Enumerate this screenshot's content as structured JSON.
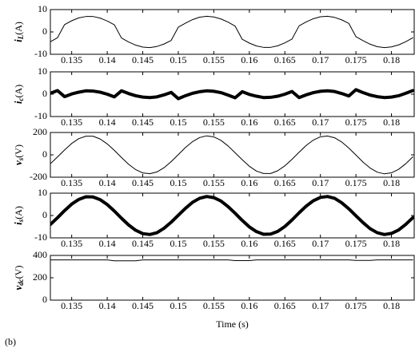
{
  "caption": "(b)",
  "chart_data": [
    {
      "type": "line",
      "y_label": {
        "symbol": "i",
        "sub": "L",
        "unit": "(A)"
      },
      "color": "#000000",
      "line_width": 1,
      "grid": false,
      "xlim": [
        0.132,
        0.1832
      ],
      "xticks": [
        0.135,
        0.14,
        0.145,
        0.15,
        0.155,
        0.16,
        0.165,
        0.17,
        0.175,
        0.18
      ],
      "ylim": [
        -10,
        10
      ],
      "yticks": [
        -10,
        0,
        10
      ],
      "x": [
        0.132,
        0.133,
        0.134,
        0.135,
        0.136,
        0.137,
        0.138,
        0.139,
        0.14,
        0.141,
        0.142,
        0.143,
        0.144,
        0.145,
        0.146,
        0.147,
        0.148,
        0.149,
        0.15,
        0.151,
        0.152,
        0.153,
        0.154,
        0.155,
        0.156,
        0.157,
        0.158,
        0.159,
        0.16,
        0.161,
        0.162,
        0.163,
        0.164,
        0.165,
        0.166,
        0.167,
        0.168,
        0.169,
        0.17,
        0.171,
        0.172,
        0.173,
        0.174,
        0.175,
        0.176,
        0.177,
        0.178,
        0.179,
        0.18,
        0.181,
        0.182,
        0.183
      ],
      "values": [
        -4.4,
        -2.6,
        3.3,
        5.0,
        6.3,
        6.9,
        6.9,
        6.2,
        4.9,
        3.2,
        -2.7,
        -4.5,
        -5.9,
        -6.8,
        -7.0,
        -6.5,
        -5.4,
        -3.8,
        2.1,
        3.9,
        5.5,
        6.6,
        7.0,
        6.7,
        5.8,
        4.4,
        2.6,
        -3.3,
        -5.0,
        -6.3,
        -6.9,
        -6.9,
        -6.2,
        -4.9,
        -3.2,
        2.7,
        4.5,
        5.9,
        6.8,
        7.0,
        6.5,
        5.4,
        3.8,
        -2.1,
        -3.9,
        -5.5,
        -6.6,
        -7.0,
        -6.7,
        -5.8,
        -4.4,
        -2.6
      ]
    },
    {
      "type": "line",
      "y_label": {
        "symbol": "i",
        "sub": "c",
        "unit": "(A)"
      },
      "color": "#000000",
      "line_width": 4,
      "grid": false,
      "xlim": [
        0.132,
        0.1832
      ],
      "xticks": [
        0.135,
        0.14,
        0.145,
        0.15,
        0.155,
        0.16,
        0.165,
        0.17,
        0.175,
        0.18
      ],
      "ylim": [
        -10,
        10
      ],
      "yticks": [
        -10,
        0,
        10
      ],
      "x": [
        0.132,
        0.133,
        0.134,
        0.135,
        0.136,
        0.137,
        0.138,
        0.139,
        0.14,
        0.141,
        0.142,
        0.143,
        0.144,
        0.145,
        0.146,
        0.147,
        0.148,
        0.149,
        0.15,
        0.151,
        0.152,
        0.153,
        0.154,
        0.155,
        0.156,
        0.157,
        0.158,
        0.159,
        0.16,
        0.161,
        0.162,
        0.163,
        0.164,
        0.165,
        0.166,
        0.167,
        0.168,
        0.169,
        0.17,
        0.171,
        0.172,
        0.173,
        0.174,
        0.175,
        0.176,
        0.177,
        0.178,
        0.179,
        0.18,
        0.181,
        0.182,
        0.183
      ],
      "values": [
        0.4,
        1.6,
        -1.1,
        0.1,
        0.9,
        1.5,
        1.4,
        0.9,
        0.0,
        -1.2,
        1.5,
        0.3,
        -0.7,
        -1.3,
        -1.5,
        -1.2,
        -0.3,
        0.8,
        -2.0,
        -0.7,
        0.4,
        1.1,
        1.5,
        1.3,
        0.7,
        -0.4,
        -1.6,
        1.1,
        -0.1,
        -0.9,
        -1.5,
        -1.4,
        -0.9,
        0.0,
        1.2,
        -1.5,
        -0.3,
        0.7,
        1.3,
        1.5,
        1.2,
        0.3,
        -0.8,
        2.0,
        0.7,
        -0.4,
        -1.1,
        -1.5,
        -1.3,
        -0.7,
        0.4,
        1.6
      ]
    },
    {
      "type": "line",
      "y_label": {
        "symbol": "v",
        "sub": "s",
        "unit": "(V)"
      },
      "color": "#000000",
      "line_width": 1,
      "grid": false,
      "xlim": [
        0.132,
        0.1832
      ],
      "xticks": [
        0.135,
        0.14,
        0.145,
        0.15,
        0.155,
        0.16,
        0.165,
        0.17,
        0.175,
        0.18
      ],
      "ylim": [
        -200,
        200
      ],
      "yticks": [
        -200,
        0,
        200
      ],
      "x": [
        0.132,
        0.133,
        0.134,
        0.135,
        0.136,
        0.137,
        0.138,
        0.139,
        0.14,
        0.141,
        0.142,
        0.143,
        0.144,
        0.145,
        0.146,
        0.147,
        0.148,
        0.149,
        0.15,
        0.151,
        0.152,
        0.153,
        0.154,
        0.155,
        0.156,
        0.157,
        0.158,
        0.159,
        0.16,
        0.161,
        0.162,
        0.163,
        0.164,
        0.165,
        0.166,
        0.167,
        0.168,
        0.169,
        0.17,
        0.171,
        0.172,
        0.173,
        0.174,
        0.175,
        0.176,
        0.177,
        0.178,
        0.179,
        0.18,
        0.181,
        0.182,
        0.183
      ],
      "values": [
        -80,
        -19,
        44,
        102,
        145,
        167,
        167,
        142,
        98,
        40,
        -23,
        -84,
        -132,
        -162,
        -169,
        -153,
        -115,
        -61,
        2,
        65,
        118,
        155,
        170,
        161,
        130,
        80,
        19,
        -44,
        -102,
        -145,
        -167,
        -167,
        -142,
        -98,
        -40,
        23,
        84,
        132,
        162,
        169,
        153,
        115,
        61,
        -2,
        -65,
        -118,
        -155,
        -170,
        -161,
        -130,
        -80,
        -19
      ]
    },
    {
      "type": "line",
      "y_label": {
        "symbol": "i",
        "sub": "s",
        "unit": "(A)"
      },
      "color": "#000000",
      "line_width": 4,
      "grid": false,
      "xlim": [
        0.132,
        0.1832
      ],
      "xticks": [
        0.135,
        0.14,
        0.145,
        0.15,
        0.155,
        0.16,
        0.165,
        0.17,
        0.175,
        0.18
      ],
      "ylim": [
        -10,
        10
      ],
      "yticks": [
        -10,
        0,
        10
      ],
      "x": [
        0.132,
        0.133,
        0.134,
        0.135,
        0.136,
        0.137,
        0.138,
        0.139,
        0.14,
        0.141,
        0.142,
        0.143,
        0.144,
        0.145,
        0.146,
        0.147,
        0.148,
        0.149,
        0.15,
        0.151,
        0.152,
        0.153,
        0.154,
        0.155,
        0.156,
        0.157,
        0.158,
        0.159,
        0.16,
        0.161,
        0.162,
        0.163,
        0.164,
        0.165,
        0.166,
        0.167,
        0.168,
        0.169,
        0.17,
        0.171,
        0.172,
        0.173,
        0.174,
        0.175,
        0.176,
        0.177,
        0.178,
        0.179,
        0.18,
        0.181,
        0.182,
        0.183
      ],
      "values": [
        -4.0,
        -1.0,
        2.2,
        5.1,
        7.2,
        8.4,
        8.3,
        7.1,
        4.9,
        2.0,
        -1.2,
        -4.2,
        -6.6,
        -8.1,
        -8.5,
        -7.7,
        -5.7,
        -3.0,
        0.1,
        3.2,
        5.9,
        7.7,
        8.5,
        8.0,
        6.5,
        4.0,
        1.0,
        -2.2,
        -5.1,
        -7.2,
        -8.4,
        -8.3,
        -7.1,
        -4.9,
        -2.0,
        1.2,
        4.2,
        6.6,
        8.1,
        8.5,
        7.7,
        5.7,
        3.0,
        -0.1,
        -3.2,
        -5.9,
        -7.7,
        -8.5,
        -8.0,
        -6.5,
        -4.0,
        -1.0
      ]
    },
    {
      "type": "line",
      "y_label": {
        "symbol": "v",
        "sub": "dc",
        "unit": "(V)"
      },
      "x_label": "Time (s)",
      "color": "#000000",
      "line_width": 1,
      "grid": false,
      "xlim": [
        0.132,
        0.1832
      ],
      "xticks": [
        0.135,
        0.14,
        0.145,
        0.15,
        0.155,
        0.16,
        0.165,
        0.17,
        0.175,
        0.18
      ],
      "ylim": [
        0,
        400
      ],
      "yticks": [
        0,
        200,
        400
      ],
      "x": [
        0.132,
        0.133,
        0.134,
        0.135,
        0.136,
        0.137,
        0.138,
        0.139,
        0.14,
        0.141,
        0.142,
        0.143,
        0.144,
        0.145,
        0.146,
        0.147,
        0.148,
        0.149,
        0.15,
        0.151,
        0.152,
        0.153,
        0.154,
        0.155,
        0.156,
        0.157,
        0.158,
        0.159,
        0.16,
        0.161,
        0.162,
        0.163,
        0.164,
        0.165,
        0.166,
        0.167,
        0.168,
        0.169,
        0.17,
        0.171,
        0.172,
        0.173,
        0.174,
        0.175,
        0.176,
        0.177,
        0.178,
        0.179,
        0.18,
        0.181,
        0.182,
        0.183
      ],
      "values": [
        360,
        360,
        360,
        360,
        360,
        360,
        360,
        360,
        360,
        352,
        352,
        352,
        352,
        360,
        360,
        360,
        360,
        360,
        360,
        360,
        360,
        360,
        360,
        360,
        360,
        360,
        354,
        354,
        354,
        360,
        360,
        360,
        360,
        360,
        360,
        360,
        360,
        360,
        360,
        360,
        360,
        360,
        360,
        355,
        355,
        355,
        360,
        360,
        360,
        360,
        360,
        360
      ]
    }
  ]
}
